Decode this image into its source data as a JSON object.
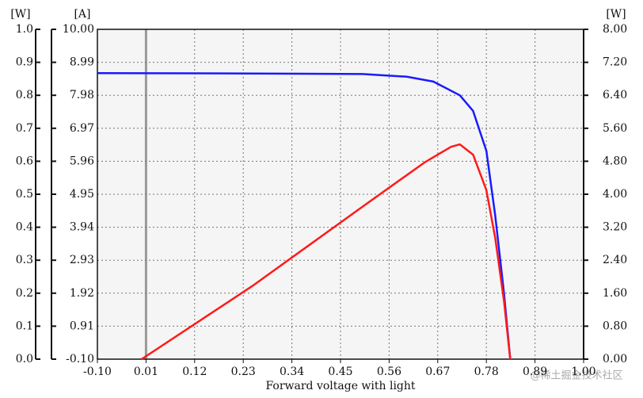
{
  "chart_data": {
    "type": "line",
    "x_label": "Forward voltage with light",
    "watermark": "@稀土掘金技术社区",
    "xlim": [
      -0.1,
      1.0
    ],
    "xticks": [
      {
        "value": -0.1,
        "label": "-0.10"
      },
      0.01,
      0.12,
      0.23,
      0.34,
      0.45,
      0.56,
      0.67,
      0.78,
      0.89,
      {
        "value": 1.0,
        "label": "1.00"
      }
    ],
    "y_label": "[A]",
    "ylim": [
      -0.1,
      10.0
    ],
    "yticks": [
      {
        "value": -0.1,
        "label": "-0.10"
      },
      0.91,
      1.92,
      2.93,
      3.94,
      4.95,
      5.96,
      6.97,
      7.98,
      8.99,
      {
        "value": 10.0,
        "label": "10.00"
      }
    ],
    "y2_label": "[W]",
    "y2lim": [
      0,
      8
    ],
    "y2ticks": [
      {
        "value": 0,
        "label": "0.00"
      },
      {
        "value": 0.8,
        "label": "0.80"
      },
      {
        "value": 1.6,
        "label": "1.60"
      },
      {
        "value": 2.4,
        "label": "2.40"
      },
      {
        "value": 3.2,
        "label": "3.20"
      },
      {
        "value": 4.0,
        "label": "4.00"
      },
      {
        "value": 4.8,
        "label": "4.80"
      },
      {
        "value": 5.6,
        "label": "5.60"
      },
      {
        "value": 6.4,
        "label": "6.40"
      },
      {
        "value": 7.2,
        "label": "7.20"
      },
      {
        "value": 8.0,
        "label": "8.00"
      }
    ],
    "y3_label": "[W]",
    "y3lim": [
      0,
      1
    ],
    "y3ticks": [
      {
        "value": 0,
        "label": "0.0"
      },
      0.1,
      0.2,
      0.3,
      0.4,
      0.5,
      0.6,
      0.7,
      0.8,
      0.9,
      {
        "value": 1,
        "label": "1.0"
      }
    ],
    "grid": true,
    "series": [
      {
        "color": "#1a1aff",
        "axis": "y",
        "x": [
          -0.1,
          0.2,
          0.5,
          0.6,
          0.66,
          0.72,
          0.75,
          0.78,
          0.8,
          0.82,
          0.834
        ],
        "values": [
          8.66,
          8.65,
          8.63,
          8.55,
          8.4,
          7.98,
          7.5,
          6.28,
          4.3,
          1.9,
          -0.1
        ]
      },
      {
        "color": "#ff1a1a",
        "axis": "y2",
        "x": [
          0,
          0.25,
          0.5,
          0.64,
          0.7,
          0.72,
          0.75,
          0.78,
          0.8,
          0.82,
          0.834
        ],
        "values": [
          0,
          1.77,
          3.7,
          4.77,
          5.15,
          5.21,
          4.96,
          4.1,
          2.94,
          1.4,
          0
        ]
      }
    ]
  }
}
